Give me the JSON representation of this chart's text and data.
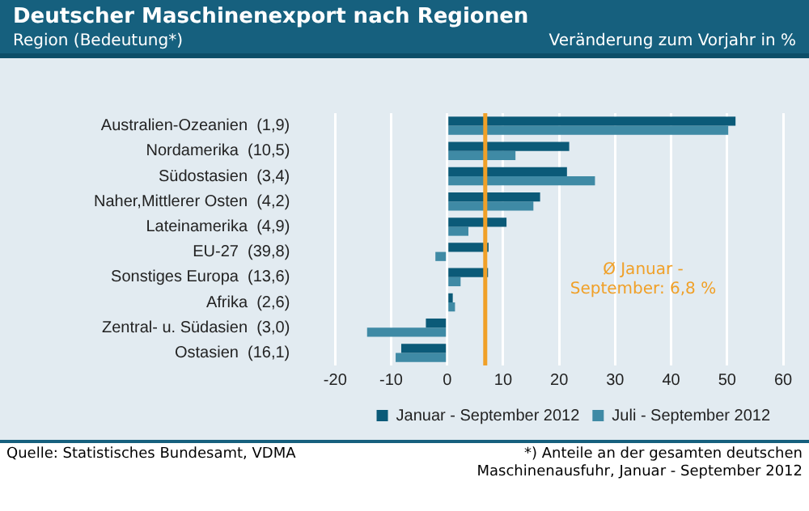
{
  "chart_data": {
    "type": "bar",
    "orientation": "horizontal",
    "title": "Deutscher Maschinenexport nach Regionen",
    "ylabel": "Region (Bedeutung*)",
    "xlabel": "Veränderung  zum Vorjahr in %",
    "categories": [
      "Australien-Ozeanien  (1,9)",
      "Nordamerika  (10,5)",
      "Südostasien  (3,4)",
      "Naher,Mittlerer Osten  (4,2)",
      "Lateinamerika  (4,9)",
      "EU-27  (39,8)",
      "Sonstiges Europa  (13,6)",
      "Afrika  (2,6)",
      "Zentral- u. Südasien  (3,0)",
      "Ostasien  (16,1)"
    ],
    "series": [
      {
        "name": "Januar - September 2012",
        "color": "#0b5a78",
        "values": [
          51.5,
          21.8,
          21.4,
          16.6,
          10.6,
          7.4,
          7.3,
          1.0,
          -3.8,
          -8.2
        ]
      },
      {
        "name": "Juli - September 2012",
        "color": "#3f8aa5",
        "values": [
          50.2,
          12.2,
          26.4,
          15.4,
          3.8,
          -2.1,
          2.4,
          1.4,
          -14.3,
          -9.2
        ]
      }
    ],
    "xlim": [
      -20,
      60
    ],
    "xticks": [
      -20,
      -10,
      0,
      10,
      20,
      30,
      40,
      50,
      60
    ],
    "grid": "x",
    "legend": "bottom right",
    "ref_lines": [
      {
        "axis": "x",
        "value": 6.8,
        "label": "Ø Januar -\nSeptember: 6,8 %",
        "color": "#f0a028"
      }
    ],
    "annotations": [
      "Quelle: Statistisches Bundesamt, VDMA",
      "*) Anteile an der gesamten deutschen\nMaschinenausfuhr, Januar - September 2012"
    ]
  }
}
